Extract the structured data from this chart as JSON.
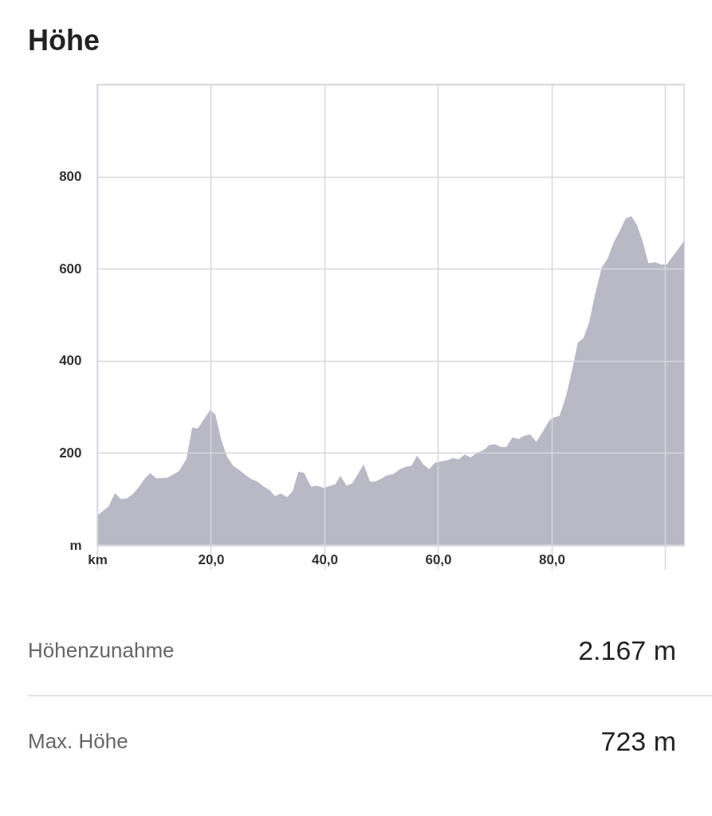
{
  "chart_data": {
    "type": "area",
    "title": "Höhe",
    "x": [
      0,
      2,
      3.1,
      4.1,
      5.2,
      6.2,
      7.2,
      8.4,
      9.3,
      10.4,
      12.4,
      14.4,
      15.7,
      16.7,
      17.7,
      19.9,
      20.8,
      21.8,
      22.8,
      23.9,
      25,
      26,
      27.1,
      28.2,
      29.3,
      30.3,
      31.3,
      32.3,
      33.4,
      34.4,
      35.4,
      36.4,
      37.6,
      38.7,
      39.8,
      41.9,
      42.8,
      43.9,
      44.9,
      46.9,
      48,
      49,
      50.1,
      51.1,
      52.1,
      53.3,
      54.3,
      55.3,
      56.3,
      57.4,
      58.4,
      59.5,
      60.7,
      61.6,
      62.6,
      63.6,
      64.7,
      65.7,
      66.9,
      67.9,
      69,
      70,
      71.1,
      72,
      73.1,
      74.1,
      75.1,
      76.2,
      77.3,
      78.3,
      79.6,
      80.4,
      81.4,
      82.6,
      83.6,
      84.6,
      85.6,
      86.6,
      87.6,
      88.8,
      89.8,
      90.9,
      91.9,
      93,
      94,
      95,
      96,
      97,
      98.2,
      99.3,
      100.3,
      101.3,
      102.3,
      103.3
    ],
    "series": [
      {
        "color": "#b9b9c6",
        "values": [
          64,
          84,
          113,
          100,
          101,
          110,
          124,
          145,
          156,
          145,
          146,
          161,
          187,
          255,
          253,
          294,
          283,
          230,
          193,
          172,
          163,
          153,
          143,
          138,
          127,
          120,
          106,
          112,
          104,
          117,
          159,
          157,
          127,
          129,
          124,
          132,
          150,
          129,
          134,
          175,
          138,
          138,
          145,
          152,
          154,
          165,
          170,
          172,
          194,
          175,
          165,
          179,
          182,
          184,
          189,
          186,
          197,
          190,
          201,
          205,
          217,
          219,
          213,
          213,
          234,
          230,
          237,
          240,
          224,
          244,
          271,
          277,
          281,
          327,
          381,
          440,
          450,
          484,
          543,
          603,
          621,
          657,
          680,
          709,
          714,
          695,
          660,
          612,
          614,
          609,
          610,
          627,
          643,
          661
        ]
      }
    ],
    "xlim": [
      0,
      103.3
    ],
    "xticks": [
      {
        "value": 0,
        "label": "km"
      },
      {
        "value": 20,
        "label": "20,0"
      },
      {
        "value": 40,
        "label": "40,0"
      },
      {
        "value": 60,
        "label": "60,0"
      },
      {
        "value": 80,
        "label": "80,0"
      },
      {
        "value": 100,
        "label": null
      }
    ],
    "ylim": [
      0,
      1000
    ],
    "yticks": [
      {
        "value": 0,
        "label": "m"
      },
      200,
      400,
      600,
      800,
      {
        "value": 1000,
        "label": null
      }
    ],
    "grid": true,
    "annotations": [
      "Höhenzunahme",
      "2.167 m",
      "Max. Höhe",
      "723 m"
    ]
  }
}
